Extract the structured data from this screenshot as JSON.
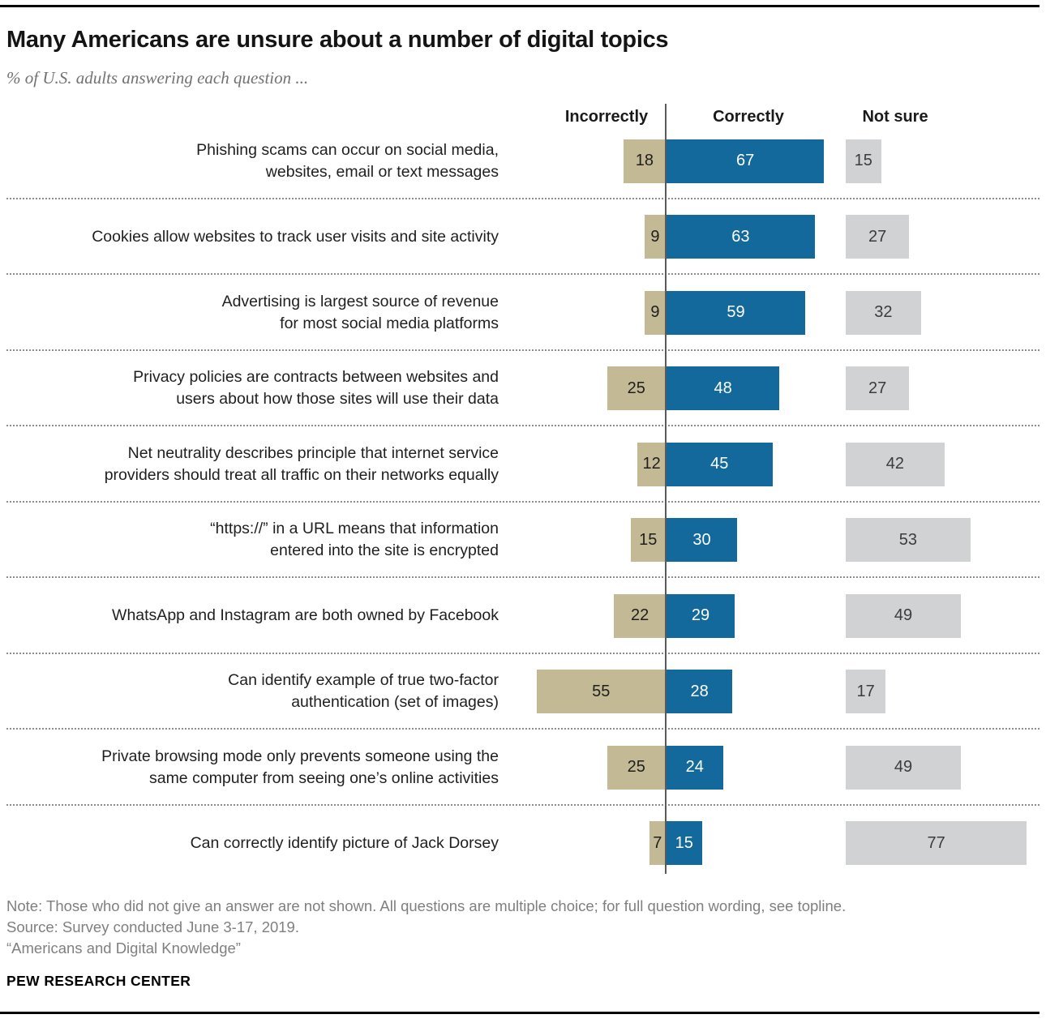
{
  "header": {
    "title": "Many Americans are unsure about a number of digital topics",
    "subtitle": "% of U.S. adults answering each question ..."
  },
  "chart_data": {
    "type": "bar",
    "orientation": "horizontal",
    "unit": "% of U.S. adults",
    "value_range": [
      0,
      100
    ],
    "column_headers": [
      "Incorrectly",
      "Correctly",
      "Not sure"
    ],
    "categories": [
      "Phishing scams can occur on social media, websites, email or text messages",
      "Cookies allow websites to track user visits and site activity",
      "Advertising is largest source of revenue for most social media platforms",
      "Privacy policies are contracts between websites and users about how those sites will use their data",
      "Net neutrality describes principle that internet service providers should treat all traffic on their networks equally",
      "“https://” in a URL means that information entered into the site is encrypted",
      "WhatsApp and Instagram are both owned by Facebook",
      "Can identify example of true two-factor authentication (set of images)",
      "Private browsing mode only prevents someone using the same computer from seeing one’s online activities",
      "Can correctly identify picture of Jack Dorsey"
    ],
    "label_lines": [
      [
        "Phishing scams can occur on social media,",
        "websites, email or text messages"
      ],
      [
        "Cookies allow websites to track user visits and site activity"
      ],
      [
        "Advertising is largest source of revenue",
        "for most social media platforms"
      ],
      [
        "Privacy policies are contracts between websites and",
        "users about how those sites will use their data"
      ],
      [
        "Net neutrality describes principle that internet service",
        "providers should treat all traffic on their networks equally"
      ],
      [
        "“https://” in a URL means that information",
        "entered into the site is encrypted"
      ],
      [
        "WhatsApp and Instagram are both owned by Facebook"
      ],
      [
        "Can identify example of true two-factor",
        "authentication (set of images)"
      ],
      [
        "Private browsing mode only prevents someone using the",
        "same computer from seeing one’s online activities"
      ],
      [
        "Can correctly identify picture of Jack Dorsey"
      ]
    ],
    "series": [
      {
        "name": "Incorrectly",
        "color": "#C3B995",
        "values": [
          18,
          9,
          9,
          25,
          12,
          15,
          22,
          55,
          25,
          7
        ]
      },
      {
        "name": "Correctly",
        "color": "#13699B",
        "values": [
          67,
          63,
          59,
          48,
          45,
          30,
          29,
          28,
          24,
          15
        ]
      },
      {
        "name": "Not sure",
        "color": "#D1D2D3",
        "values": [
          15,
          27,
          32,
          27,
          42,
          53,
          49,
          17,
          49,
          77
        ]
      }
    ],
    "grid": "dotted horizontal row separators",
    "legend_position": "column headers above bar groups"
  },
  "footer": {
    "note": "Note: Those who did not give an answer are not shown. All questions are multiple choice; for full question wording, see topline.",
    "source": "Source: Survey conducted June 3-17, 2019.",
    "report": "“Americans and Digital Knowledge”",
    "brand": "PEW RESEARCH CENTER"
  }
}
